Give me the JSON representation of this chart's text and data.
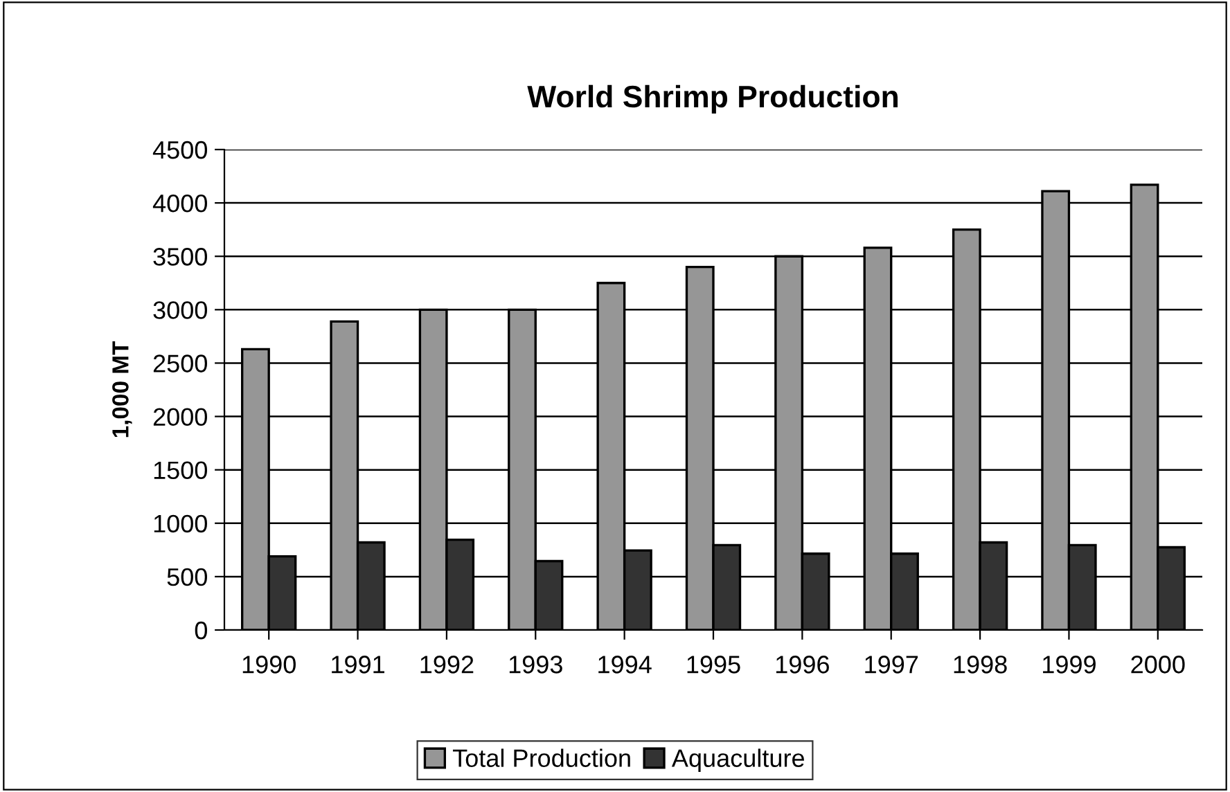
{
  "chart_data": {
    "type": "bar",
    "title": "World Shrimp Production",
    "ylabel": "1,000 MT",
    "categories": [
      "1990",
      "1991",
      "1992",
      "1993",
      "1994",
      "1995",
      "1996",
      "1997",
      "1998",
      "1999",
      "2000"
    ],
    "series": [
      {
        "name": "Total Production",
        "color": "#969696",
        "values": [
          2630,
          2890,
          3000,
          3000,
          3250,
          3400,
          3500,
          3580,
          3750,
          4110,
          4170
        ]
      },
      {
        "name": "Aquaculture",
        "color": "#333333",
        "values": [
          690,
          820,
          845,
          645,
          745,
          795,
          715,
          715,
          820,
          795,
          775
        ]
      }
    ],
    "ylim": [
      0,
      4500
    ],
    "yticks": [
      0,
      500,
      1000,
      1500,
      2000,
      2500,
      3000,
      3500,
      4000,
      4500
    ],
    "grid": "y",
    "legend": "bottom"
  }
}
